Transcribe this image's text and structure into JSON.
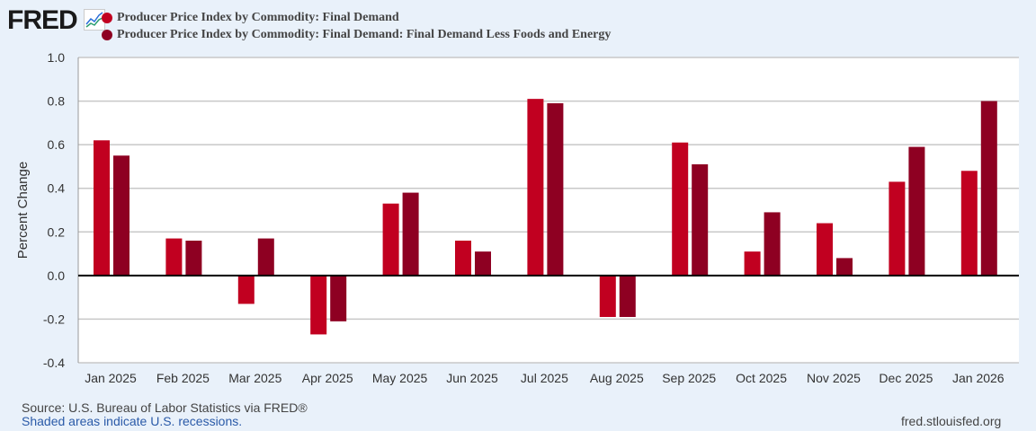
{
  "logo": "FRED",
  "footer": {
    "source": "Source: U.S. Bureau of Labor Statistics via FRED®",
    "recessions": "Shaded areas indicate U.S. recessions.",
    "site": "fred.stlouisfed.org"
  },
  "chart_data": {
    "type": "bar",
    "ylabel": "Percent Change",
    "ylim": [
      -0.4,
      1.0
    ],
    "yticks": [
      "1.0",
      "0.8",
      "0.6",
      "0.4",
      "0.2",
      "0.0",
      "-0.2",
      "-0.4"
    ],
    "grid": true,
    "legend": "top-left",
    "categories": [
      "Jan 2025",
      "Feb 2025",
      "Mar 2025",
      "Apr 2025",
      "May 2025",
      "Jun 2025",
      "Jul 2025",
      "Aug 2025",
      "Sep 2025",
      "Oct 2025",
      "Nov 2025",
      "Dec 2025",
      "Jan 2026"
    ],
    "series": [
      {
        "name": "Producer Price Index by Commodity: Final Demand",
        "color": "#c10020",
        "values": [
          0.62,
          0.17,
          -0.13,
          -0.27,
          0.33,
          0.16,
          0.81,
          -0.19,
          0.61,
          0.11,
          0.24,
          0.43,
          0.48
        ]
      },
      {
        "name": "Producer Price Index by Commodity: Final Demand: Final Demand Less Foods and Energy",
        "color": "#8e0022",
        "values": [
          0.55,
          0.16,
          0.17,
          -0.21,
          0.38,
          0.11,
          0.79,
          -0.19,
          0.51,
          0.29,
          0.08,
          0.59,
          0.8
        ]
      }
    ]
  }
}
